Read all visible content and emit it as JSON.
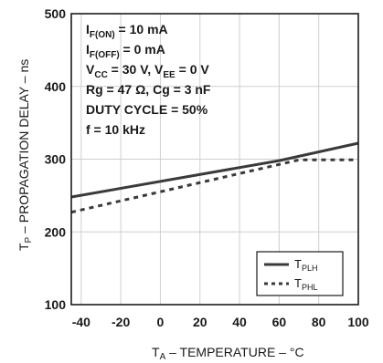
{
  "chart_data": {
    "type": "line",
    "xlabel": "TA – TEMPERATURE – °C",
    "ylabel": "Tp – PROPAGATION DELAY – ns",
    "xlim": [
      -45,
      100
    ],
    "ylim": [
      100,
      500
    ],
    "x_ticks": [
      -40,
      -20,
      0,
      20,
      40,
      60,
      80,
      100
    ],
    "y_ticks": [
      100,
      200,
      300,
      400,
      500
    ],
    "grid": true,
    "legend_placement": "bottom-right",
    "annotations": [
      "IF(ON) = 10 mA",
      "IF(OFF) = 0 mA",
      "VCC = 30 V, VEE = 0 V",
      "Rg = 47 Ω, Cg = 3 nF",
      "DUTY CYCLE = 50%",
      "f = 10 kHz"
    ],
    "series": [
      {
        "name": "TPLH",
        "style": "solid",
        "color": "#3a3a3a",
        "x": [
          -45,
          60,
          100
        ],
        "y": [
          248,
          298,
          322
        ]
      },
      {
        "name": "TPHL",
        "style": "dashed",
        "color": "#3a3a3a",
        "x": [
          -45,
          70,
          100
        ],
        "y": [
          227,
          299,
          299
        ]
      }
    ]
  }
}
